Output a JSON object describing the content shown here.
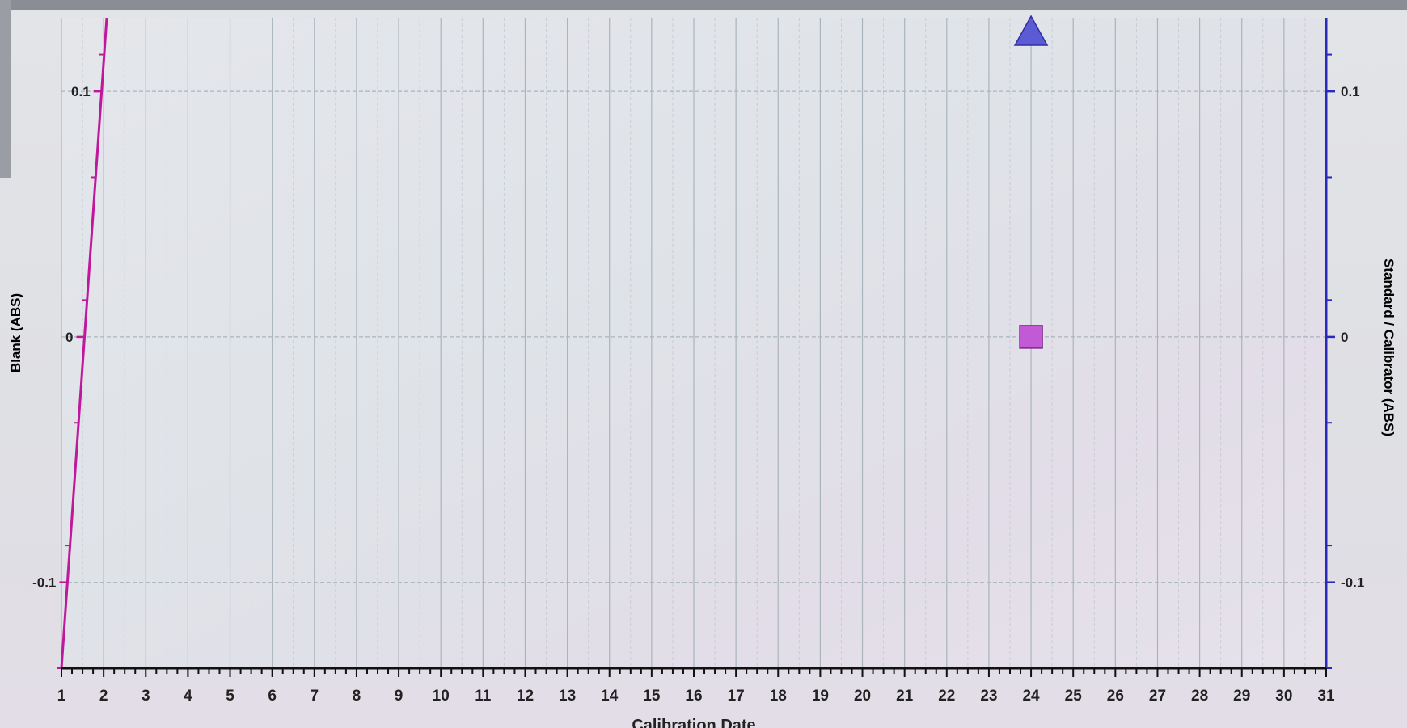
{
  "chart_data": {
    "type": "scatter",
    "xlabel": "Calibration Date",
    "x_ticks": [
      "1",
      "2",
      "3",
      "4",
      "5",
      "6",
      "7",
      "8",
      "9",
      "10",
      "11",
      "12",
      "13",
      "14",
      "15",
      "16",
      "17",
      "18",
      "19",
      "20",
      "21",
      "22",
      "23",
      "24",
      "25",
      "26",
      "27",
      "28",
      "29",
      "30",
      "31"
    ],
    "xlim": [
      1,
      31
    ],
    "left_axis": {
      "label": "Blank (ABS)",
      "color": "#c0189c",
      "ticks": [
        "0.1",
        "0",
        "-0.1"
      ],
      "tick_values": [
        0.1,
        0,
        -0.1
      ],
      "ylim": [
        -0.135,
        0.13
      ]
    },
    "right_axis": {
      "label": "Standard / Calibrator (ABS)",
      "color": "#2a2ab8",
      "ticks": [
        "0.1",
        "0",
        "-0.1"
      ],
      "tick_values": [
        0.1,
        0,
        -0.1
      ],
      "ylim": [
        -0.135,
        0.13
      ]
    },
    "grid": true,
    "series": [
      {
        "axis": "left",
        "marker": "square",
        "color": "#c25ad6",
        "points": [
          {
            "x": 24,
            "y": 0
          }
        ]
      },
      {
        "axis": "right",
        "marker": "triangle",
        "color": "#5b5bd6",
        "points": [
          {
            "x": 24,
            "y": 0.13
          }
        ]
      }
    ]
  }
}
